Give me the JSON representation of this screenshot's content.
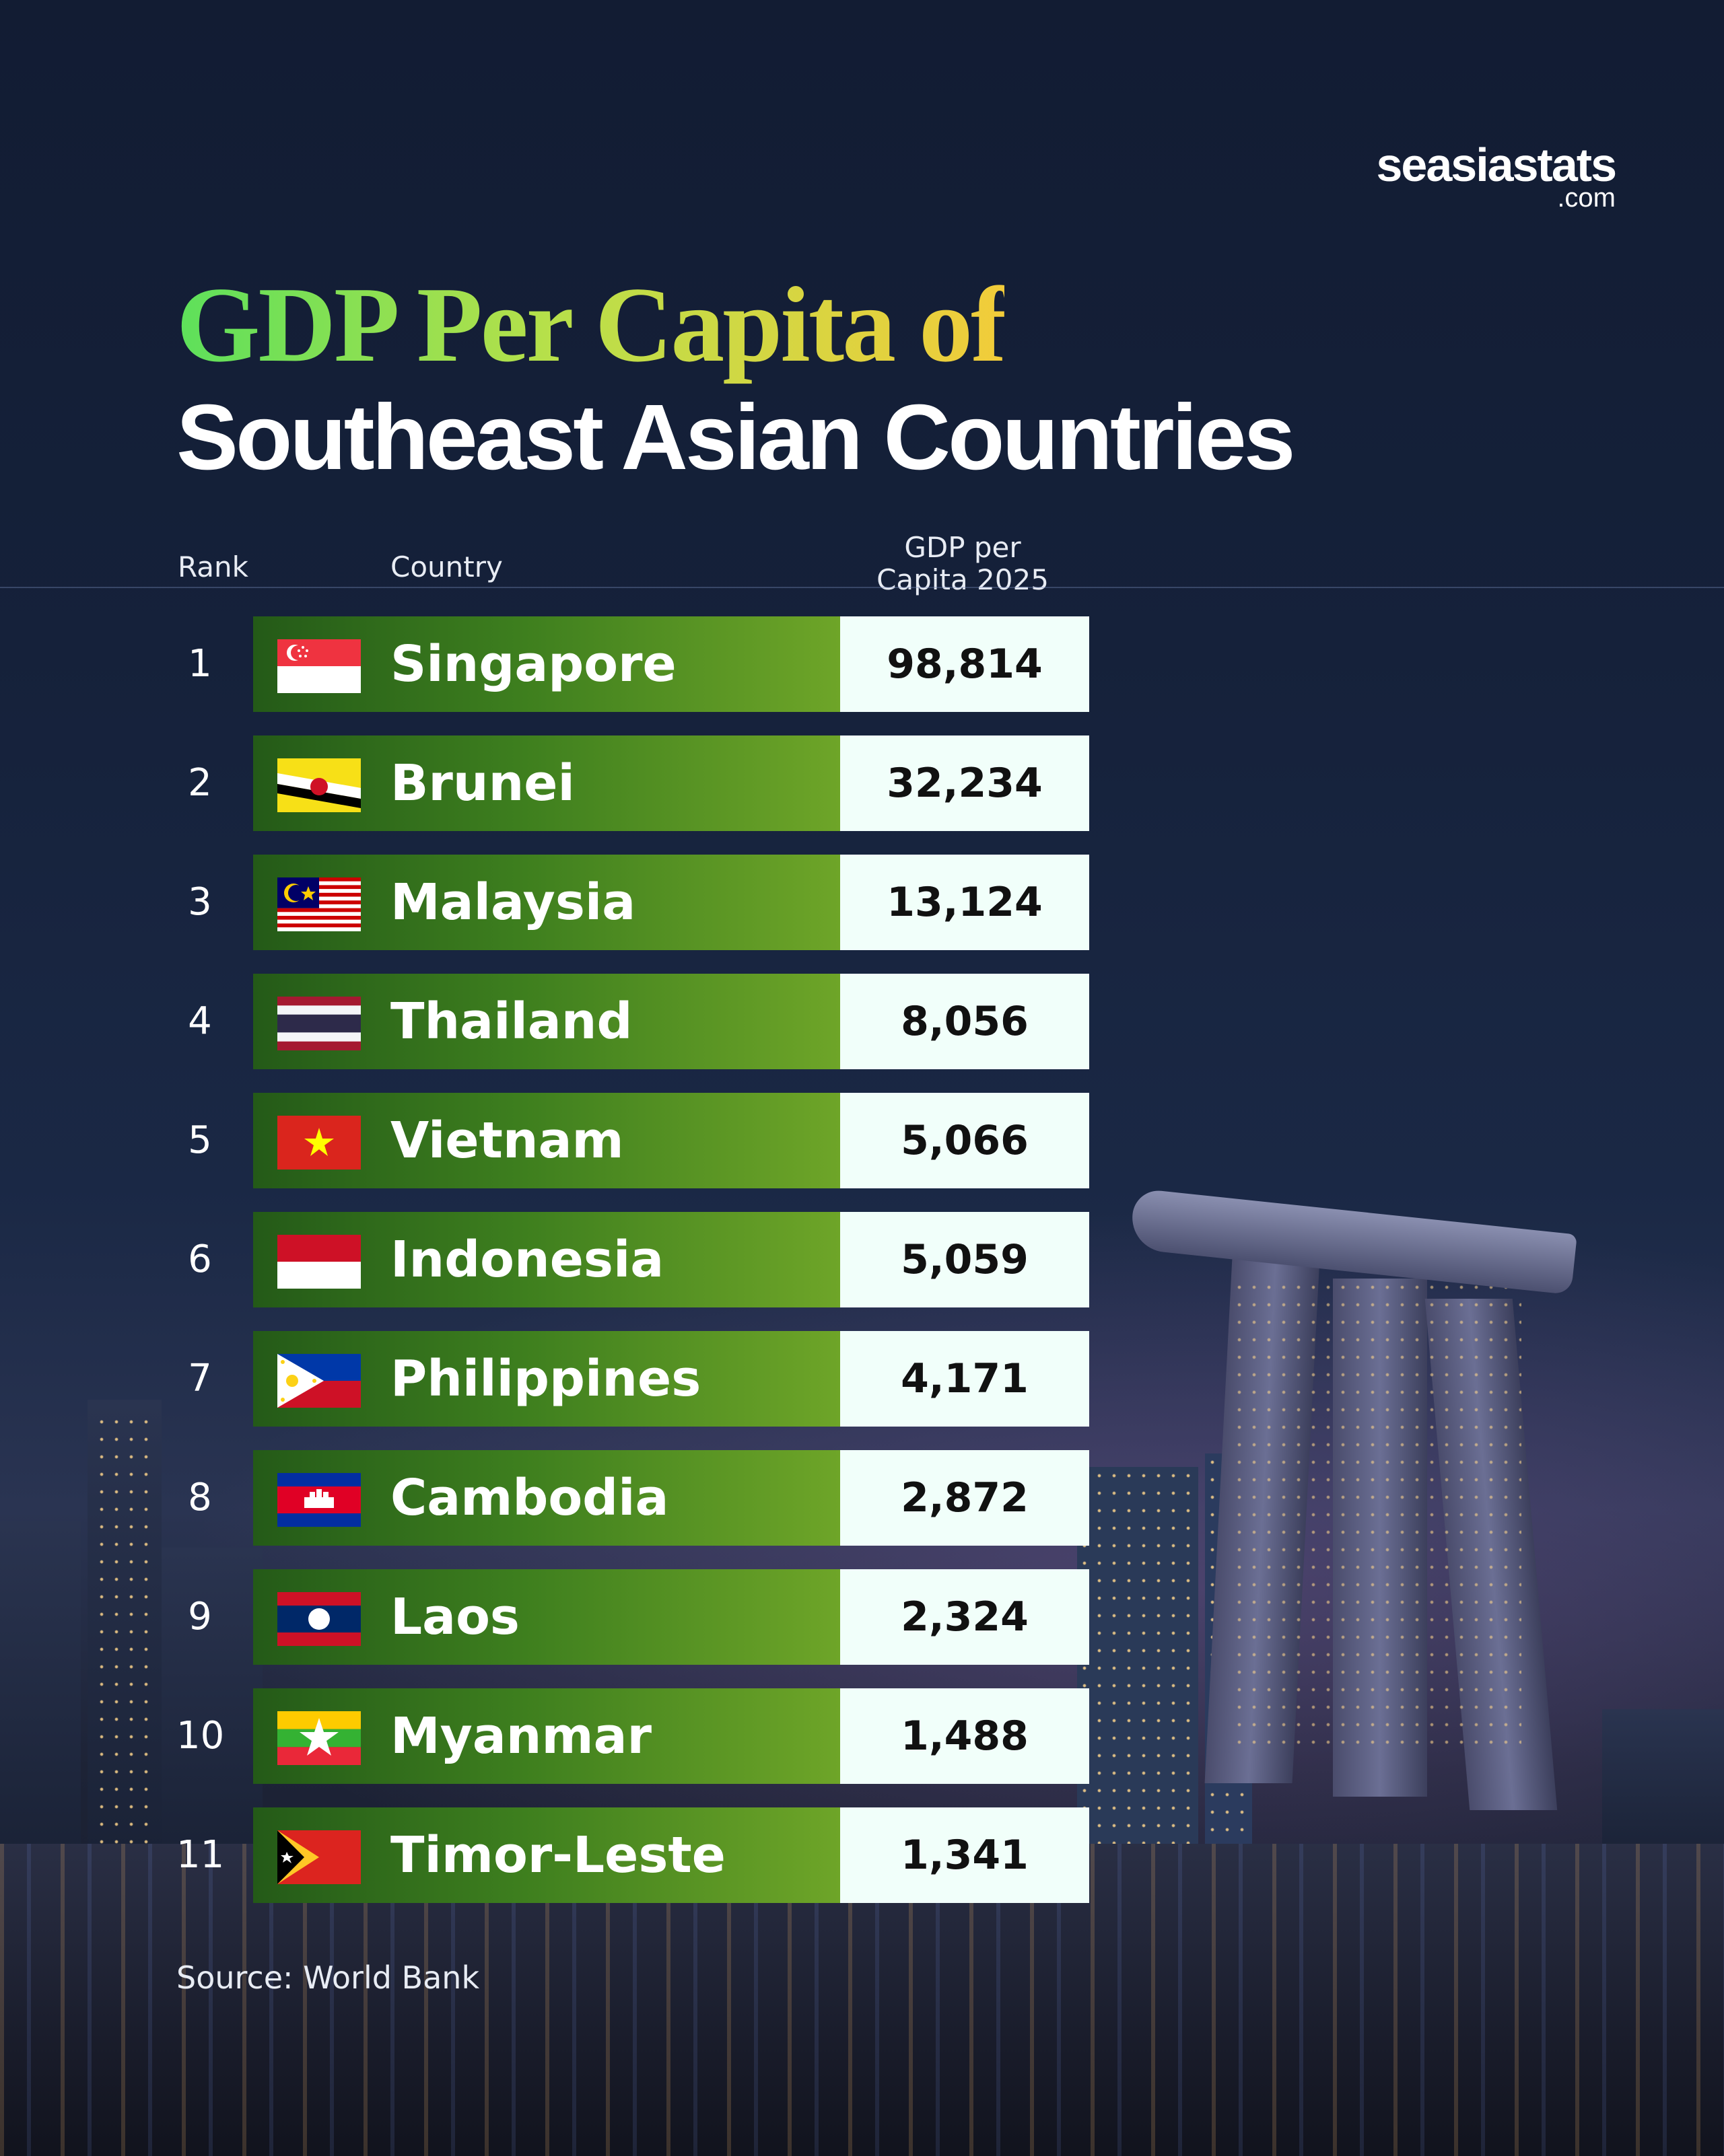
{
  "brand": {
    "name": "seasiastats",
    "suffix": ".com"
  },
  "title": {
    "line1": "GDP Per Capita of",
    "line2": "Southeast Asian Countries"
  },
  "headers": {
    "rank": "Rank",
    "country": "Country",
    "gdp_line1": "GDP per",
    "gdp_line2": "Capita 2025"
  },
  "source": "Source: World Bank",
  "colors": {
    "bar_dark": "#245a18",
    "bar_light": "#6ea528",
    "value_bg": "#f1fffa",
    "title_green": "#5de05b",
    "title_yellow": "#f2cc3a"
  },
  "chart_data": {
    "type": "table",
    "title": "GDP Per Capita of Southeast Asian Countries",
    "columns": [
      "Rank",
      "Country",
      "GDP per Capita 2025"
    ],
    "rows": [
      {
        "rank": "1",
        "country": "Singapore",
        "flag": "singapore-flag-icon",
        "value": "98,814"
      },
      {
        "rank": "2",
        "country": "Brunei",
        "flag": "brunei-flag-icon",
        "value": "32,234"
      },
      {
        "rank": "3",
        "country": "Malaysia",
        "flag": "malaysia-flag-icon",
        "value": "13,124"
      },
      {
        "rank": "4",
        "country": "Thailand",
        "flag": "thailand-flag-icon",
        "value": "8,056"
      },
      {
        "rank": "5",
        "country": "Vietnam",
        "flag": "vietnam-flag-icon",
        "value": "5,066"
      },
      {
        "rank": "6",
        "country": "Indonesia",
        "flag": "indonesia-flag-icon",
        "value": "5,059"
      },
      {
        "rank": "7",
        "country": "Philippines",
        "flag": "philippines-flag-icon",
        "value": "4,171"
      },
      {
        "rank": "8",
        "country": "Cambodia",
        "flag": "cambodia-flag-icon",
        "value": "2,872"
      },
      {
        "rank": "9",
        "country": "Laos",
        "flag": "laos-flag-icon",
        "value": "2,324"
      },
      {
        "rank": "10",
        "country": "Myanmar",
        "flag": "myanmar-flag-icon",
        "value": "1,488"
      },
      {
        "rank": "11",
        "country": "Timor-Leste",
        "flag": "timor-leste-flag-icon",
        "value": "1,341"
      }
    ]
  }
}
